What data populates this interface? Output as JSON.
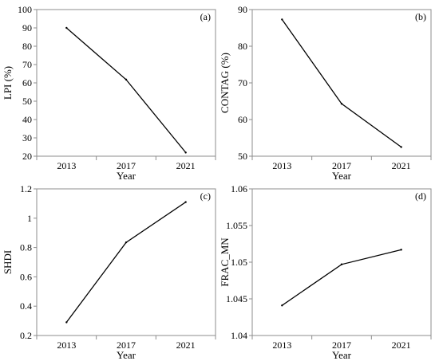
{
  "chart_data": [
    {
      "type": "line",
      "panel_label": "(a)",
      "x": [
        "2013",
        "2017",
        "2021"
      ],
      "values": [
        90,
        61.8,
        22
      ],
      "xlabel": "Year",
      "ylabel": "LPI (%)",
      "ylim": [
        20,
        100
      ],
      "yticks": [
        "20",
        "30",
        "40",
        "50",
        "60",
        "70",
        "80",
        "90",
        "100"
      ],
      "grid": false
    },
    {
      "type": "line",
      "panel_label": "(b)",
      "x": [
        "2013",
        "2017",
        "2021"
      ],
      "values": [
        87.3,
        64.3,
        52.5
      ],
      "xlabel": "Year",
      "ylabel": "CONTAG (%)",
      "ylim": [
        50,
        90
      ],
      "yticks": [
        "50",
        "60",
        "70",
        "80",
        "90"
      ],
      "grid": false
    },
    {
      "type": "line",
      "panel_label": "(c)",
      "x": [
        "2013",
        "2017",
        "2021"
      ],
      "values": [
        0.29,
        0.835,
        1.11
      ],
      "xlabel": "Year",
      "ylabel": "SHDI",
      "ylim": [
        0.2,
        1.2
      ],
      "yticks": [
        "0.2",
        "0.4",
        "0.6",
        "0.8",
        "1",
        "1.2"
      ],
      "grid": false
    },
    {
      "type": "line",
      "panel_label": "(d)",
      "x": [
        "2013",
        "2017",
        "2021"
      ],
      "values": [
        1.0441,
        1.0497,
        1.0517
      ],
      "xlabel": "Year",
      "ylabel": "FRAC_MN",
      "ylim": [
        1.04,
        1.06
      ],
      "yticks": [
        "1.04",
        "1.045",
        "1.05",
        "1.055",
        "1.06"
      ],
      "grid": false
    }
  ]
}
